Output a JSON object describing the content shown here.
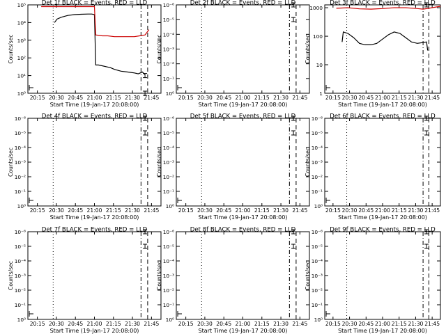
{
  "chart_data": [
    {
      "type": "line",
      "title": "Det 1f BLACK = Events, RED = LLD",
      "xlabel": "Start Time (19-Jan-17 20:08:00)",
      "ylabel": "Counts/sec",
      "x_ticks": [
        "20:15",
        "20:30",
        "20:45",
        "21:00",
        "21:15",
        "21:30",
        "21:45"
      ],
      "y_scale": "log",
      "y_ticks": [
        "10⁰",
        "10¹",
        "10²",
        "10³",
        "10⁴",
        "10⁵"
      ],
      "ylim_log": [
        0,
        5
      ],
      "xlim_min": [
        0,
        100
      ],
      "vlines": [
        {
          "x": 19,
          "style": "dotted"
        },
        {
          "x": 85,
          "style": "dashdot"
        },
        {
          "x": 90,
          "style": "dashed"
        },
        {
          "x": 100,
          "style": "longdash"
        }
      ],
      "series": [
        {
          "color": "#000000",
          "points": [
            [
              20,
              4.0
            ],
            [
              22,
              4.2
            ],
            [
              25,
              4.3
            ],
            [
              30,
              4.4
            ],
            [
              35,
              4.45
            ],
            [
              40,
              4.47
            ],
            [
              45,
              4.48
            ],
            [
              48,
              4.48
            ],
            [
              50,
              4.45
            ],
            [
              51,
              1.6
            ],
            [
              53,
              1.6
            ],
            [
              56,
              1.55
            ],
            [
              59,
              1.5
            ],
            [
              62,
              1.45
            ],
            [
              65,
              1.35
            ],
            [
              70,
              1.25
            ],
            [
              75,
              1.2
            ],
            [
              80,
              1.15
            ],
            [
              83,
              1.1
            ],
            [
              86,
              1.2
            ],
            [
              88,
              1.05
            ]
          ]
        },
        {
          "color": "#cc0000",
          "points": [
            [
              10,
              4.9
            ],
            [
              50,
              4.9
            ],
            [
              51,
              3.3
            ],
            [
              56,
              3.25
            ],
            [
              60,
              3.25
            ],
            [
              65,
              3.2
            ],
            [
              70,
              3.2
            ],
            [
              75,
              3.2
            ],
            [
              80,
              3.2
            ],
            [
              84,
              3.25
            ],
            [
              88,
              3.3
            ],
            [
              91,
              3.6
            ]
          ]
        }
      ],
      "marker_rows": [
        0,
        1
      ]
    },
    {
      "type": "line",
      "title": "Det 2f BLACK = Events, RED = LLD",
      "xlabel": "Start Time (19-Jan-17 20:08:00)",
      "ylabel": "Counts/sec",
      "x_ticks": [
        "20:15",
        "20:30",
        "20:45",
        "21:00",
        "21:15",
        "21:30",
        "21:45"
      ],
      "y_scale": "log",
      "y_ticks": [
        "10⁰",
        "10⁻¹",
        "10⁻²",
        "10⁻³",
        "10⁻⁴",
        "10⁻⁵",
        "10⁻⁶"
      ],
      "ylim_log": [
        -6,
        0
      ],
      "xlim_min": [
        0,
        100
      ],
      "vlines": [
        {
          "x": 19,
          "style": "dotted"
        },
        {
          "x": 85,
          "style": "dashdot"
        },
        {
          "x": 90,
          "style": "dashed"
        },
        {
          "x": 100,
          "style": "longdash"
        }
      ],
      "series": [],
      "marker_rows": [
        5,
        6
      ]
    },
    {
      "type": "line",
      "title": "Det 3f BLACK = Events, RED = LLD",
      "xlabel": "Start Time (19-Jan-17 20:08:00)",
      "ylabel": "Counts/sec",
      "x_ticks": [
        "20:15",
        "20:30",
        "20:45",
        "21:00",
        "21:15",
        "21:30",
        "21:45"
      ],
      "y_scale": "log",
      "y_ticks": [
        "1",
        "10",
        "100",
        "1000"
      ],
      "ylim_log": [
        0,
        3.1
      ],
      "xlim_min": [
        0,
        100
      ],
      "vlines": [
        {
          "x": 19,
          "style": "dotted"
        },
        {
          "x": 85,
          "style": "dashdot"
        },
        {
          "x": 90,
          "style": "dashed"
        },
        {
          "x": 100,
          "style": "longdash"
        }
      ],
      "series": [
        {
          "color": "#000000",
          "points": [
            [
              15,
              1.8
            ],
            [
              16,
              2.15
            ],
            [
              20,
              2.1
            ],
            [
              25,
              1.95
            ],
            [
              30,
              1.75
            ],
            [
              35,
              1.7
            ],
            [
              40,
              1.7
            ],
            [
              45,
              1.75
            ],
            [
              50,
              1.9
            ],
            [
              55,
              2.05
            ],
            [
              60,
              2.15
            ],
            [
              65,
              2.1
            ],
            [
              70,
              1.95
            ],
            [
              75,
              1.8
            ],
            [
              80,
              1.75
            ],
            [
              85,
              1.78
            ],
            [
              88,
              1.8
            ],
            [
              89,
              1.5
            ]
          ]
        },
        {
          "color": "#cc0000",
          "points": [
            [
              10,
              2.98
            ],
            [
              20,
              3.0
            ],
            [
              30,
              2.96
            ],
            [
              40,
              2.95
            ],
            [
              50,
              2.97
            ],
            [
              60,
              3.0
            ],
            [
              70,
              3.0
            ],
            [
              80,
              2.97
            ],
            [
              85,
              2.95
            ],
            [
              90,
              2.98
            ],
            [
              100,
              3.05
            ]
          ]
        }
      ],
      "marker_rows": [
        3
      ]
    },
    {
      "type": "line",
      "title": "Det 4f BLACK = Events, RED = LLD",
      "xlabel": "Start Time (19-Jan-17 20:08:00)",
      "ylabel": "Counts/sec",
      "x_ticks": [
        "20:15",
        "20:30",
        "20:45",
        "21:00",
        "21:15",
        "21:30",
        "21:45"
      ],
      "y_scale": "log",
      "y_ticks": [
        "10⁰",
        "10⁻¹",
        "10⁻²",
        "10⁻³",
        "10⁻⁴",
        "10⁻⁵",
        "10⁻⁶"
      ],
      "ylim_log": [
        -6,
        0
      ],
      "xlim_min": [
        0,
        100
      ],
      "vlines": [
        {
          "x": 19,
          "style": "dotted"
        },
        {
          "x": 85,
          "style": "dashdot"
        },
        {
          "x": 90,
          "style": "dashed"
        },
        {
          "x": 100,
          "style": "longdash"
        }
      ],
      "series": [],
      "marker_rows": [
        5,
        6
      ]
    },
    {
      "type": "line",
      "title": "Det 5f BLACK = Events, RED = LLD",
      "xlabel": "Start Time (19-Jan-17 20:08:00)",
      "ylabel": "Counts/sec",
      "x_ticks": [
        "20:15",
        "20:30",
        "20:45",
        "21:00",
        "21:15",
        "21:30",
        "21:45"
      ],
      "y_scale": "log",
      "y_ticks": [
        "10⁰",
        "10⁻¹",
        "10⁻²",
        "10⁻³",
        "10⁻⁴",
        "10⁻⁵",
        "10⁻⁶"
      ],
      "ylim_log": [
        -6,
        0
      ],
      "xlim_min": [
        0,
        100
      ],
      "vlines": [
        {
          "x": 19,
          "style": "dotted"
        },
        {
          "x": 85,
          "style": "dashdot"
        },
        {
          "x": 90,
          "style": "dashed"
        },
        {
          "x": 100,
          "style": "longdash"
        }
      ],
      "series": [],
      "marker_rows": [
        5,
        6
      ]
    },
    {
      "type": "line",
      "title": "Det 6f BLACK = Events, RED = LLD",
      "xlabel": "Start Time (19-Jan-17 20:08:00)",
      "ylabel": "Counts/sec",
      "x_ticks": [
        "20:15",
        "20:30",
        "20:45",
        "21:00",
        "21:15",
        "21:30",
        "21:45"
      ],
      "y_scale": "log",
      "y_ticks": [
        "10⁰",
        "10⁻¹",
        "10⁻²",
        "10⁻³",
        "10⁻⁴",
        "10⁻⁵",
        "10⁻⁶"
      ],
      "ylim_log": [
        -6,
        0
      ],
      "xlim_min": [
        0,
        100
      ],
      "vlines": [
        {
          "x": 19,
          "style": "dotted"
        },
        {
          "x": 85,
          "style": "dashdot"
        },
        {
          "x": 90,
          "style": "dashed"
        },
        {
          "x": 100,
          "style": "longdash"
        }
      ],
      "series": [],
      "marker_rows": [
        5,
        6
      ]
    },
    {
      "type": "line",
      "title": "Det 7f BLACK = Events, RED = LLD",
      "xlabel": "Start Time (19-Jan-17 20:08:00)",
      "ylabel": "Counts/sec",
      "x_ticks": [
        "20:15",
        "20:30",
        "20:45",
        "21:00",
        "21:15",
        "21:30",
        "21:45"
      ],
      "y_scale": "log",
      "y_ticks": [
        "10⁰",
        "10⁻¹",
        "10⁻²",
        "10⁻³",
        "10⁻⁴",
        "10⁻⁵",
        "10⁻⁶"
      ],
      "ylim_log": [
        -6,
        0
      ],
      "xlim_min": [
        0,
        100
      ],
      "vlines": [
        {
          "x": 19,
          "style": "dotted"
        },
        {
          "x": 85,
          "style": "dashdot"
        },
        {
          "x": 90,
          "style": "dashed"
        },
        {
          "x": 100,
          "style": "longdash"
        }
      ],
      "series": [],
      "marker_rows": [
        5,
        6
      ]
    },
    {
      "type": "line",
      "title": "Det 8f BLACK = Events, RED = LLD",
      "xlabel": "Start Time (19-Jan-17 20:08:00)",
      "ylabel": "Counts/sec",
      "x_ticks": [
        "20:15",
        "20:30",
        "20:45",
        "21:00",
        "21:15",
        "21:30",
        "21:45"
      ],
      "y_scale": "log",
      "y_ticks": [
        "10⁰",
        "10⁻¹",
        "10⁻²",
        "10⁻³",
        "10⁻⁴",
        "10⁻⁵",
        "10⁻⁶"
      ],
      "ylim_log": [
        -6,
        0
      ],
      "xlim_min": [
        0,
        100
      ],
      "vlines": [
        {
          "x": 19,
          "style": "dotted"
        },
        {
          "x": 85,
          "style": "dashdot"
        },
        {
          "x": 90,
          "style": "dashed"
        },
        {
          "x": 100,
          "style": "longdash"
        }
      ],
      "series": [],
      "marker_rows": [
        5,
        6
      ]
    },
    {
      "type": "line",
      "title": "Det 9f BLACK = Events, RED = LLD",
      "xlabel": "Start Time (19-Jan-17 20:08:00)",
      "ylabel": "Counts/sec",
      "x_ticks": [
        "20:15",
        "20:30",
        "20:45",
        "21:00",
        "21:15",
        "21:30",
        "21:45"
      ],
      "y_scale": "log",
      "y_ticks": [
        "10⁰",
        "10⁻¹",
        "10⁻²",
        "10⁻³",
        "10⁻⁴",
        "10⁻⁵",
        "10⁻⁶"
      ],
      "ylim_log": [
        -6,
        0
      ],
      "xlim_min": [
        0,
        100
      ],
      "vlines": [
        {
          "x": 19,
          "style": "dotted"
        },
        {
          "x": 85,
          "style": "dashdot"
        },
        {
          "x": 90,
          "style": "dashed"
        },
        {
          "x": 100,
          "style": "longdash"
        }
      ],
      "series": [],
      "marker_rows": [
        5,
        6
      ]
    }
  ]
}
